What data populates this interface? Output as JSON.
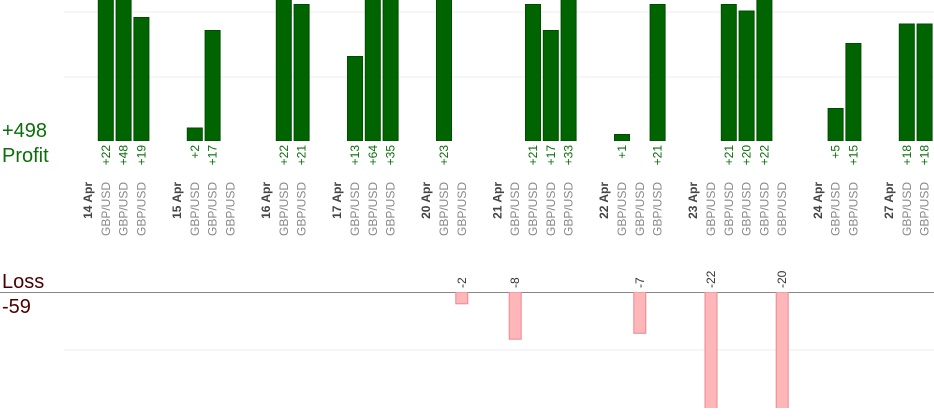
{
  "summary": {
    "profit_total": "+498",
    "profit_label": "Profit",
    "loss_label": "Loss",
    "loss_total": "-59"
  },
  "days": [
    {
      "date": "14 Apr",
      "trades": [
        {
          "pair": "GBP/USD",
          "value": 22,
          "value_label": "+22"
        },
        {
          "pair": "GBP/USD",
          "value": 48,
          "value_label": "+48"
        },
        {
          "pair": "GBP/USD",
          "value": 19,
          "value_label": "+19"
        }
      ]
    },
    {
      "date": "15 Apr",
      "trades": [
        {
          "pair": "GBP/USD",
          "value": 2,
          "value_label": "+2"
        },
        {
          "pair": "GBP/USD",
          "value": 17,
          "value_label": "+17"
        },
        {
          "pair": "GBP/USD",
          "value": null
        }
      ]
    },
    {
      "date": "16 Apr",
      "trades": [
        {
          "pair": "GBP/USD",
          "value": 22,
          "value_label": "+22"
        },
        {
          "pair": "GBP/USD",
          "value": 21,
          "value_label": "+21"
        }
      ]
    },
    {
      "date": "17 Apr",
      "trades": [
        {
          "pair": "GBP/USD",
          "value": 13,
          "value_label": "+13"
        },
        {
          "pair": "GBP/USD",
          "value": 64,
          "value_label": "+64"
        },
        {
          "pair": "GBP/USD",
          "value": 35,
          "value_label": "+35"
        }
      ]
    },
    {
      "date": "20 Apr",
      "trades": [
        {
          "pair": "GBP/USD",
          "value": 23,
          "value_label": "+23"
        },
        {
          "pair": "GBP/USD",
          "value": -2
        }
      ]
    },
    {
      "date": "21 Apr",
      "trades": [
        {
          "pair": "GBP/USD",
          "value": -8
        },
        {
          "pair": "GBP/USD",
          "value": 21,
          "value_label": "+21"
        },
        {
          "pair": "GBP/USD",
          "value": 17,
          "value_label": "+17"
        },
        {
          "pair": "GBP/USD",
          "value": 33,
          "value_label": "+33"
        }
      ]
    },
    {
      "date": "22 Apr",
      "trades": [
        {
          "pair": "GBP/USD",
          "value": 1,
          "value_label": "+1"
        },
        {
          "pair": "GBP/USD",
          "value": -7
        },
        {
          "pair": "GBP/USD",
          "value": 21,
          "value_label": "+21"
        }
      ]
    },
    {
      "date": "23 Apr",
      "trades": [
        {
          "pair": "GBP/USD",
          "value": -22
        },
        {
          "pair": "GBP/USD",
          "value": 21,
          "value_label": "+21"
        },
        {
          "pair": "GBP/USD",
          "value": 20,
          "value_label": "+20"
        },
        {
          "pair": "GBP/USD",
          "value": 22,
          "value_label": "+22"
        },
        {
          "pair": "GBP/USD",
          "value": -20
        }
      ]
    },
    {
      "date": "24 Apr",
      "trades": [
        {
          "pair": "GBP/USD",
          "value": 5,
          "value_label": "+5"
        },
        {
          "pair": "GBP/USD",
          "value": 15,
          "value_label": "+15"
        }
      ]
    },
    {
      "date": "27 Apr",
      "trades": [
        {
          "pair": "GBP/USD",
          "value": 18,
          "value_label": "+18"
        },
        {
          "pair": "GBP/USD",
          "value": 18,
          "value_label": "+18"
        }
      ]
    }
  ]
}
